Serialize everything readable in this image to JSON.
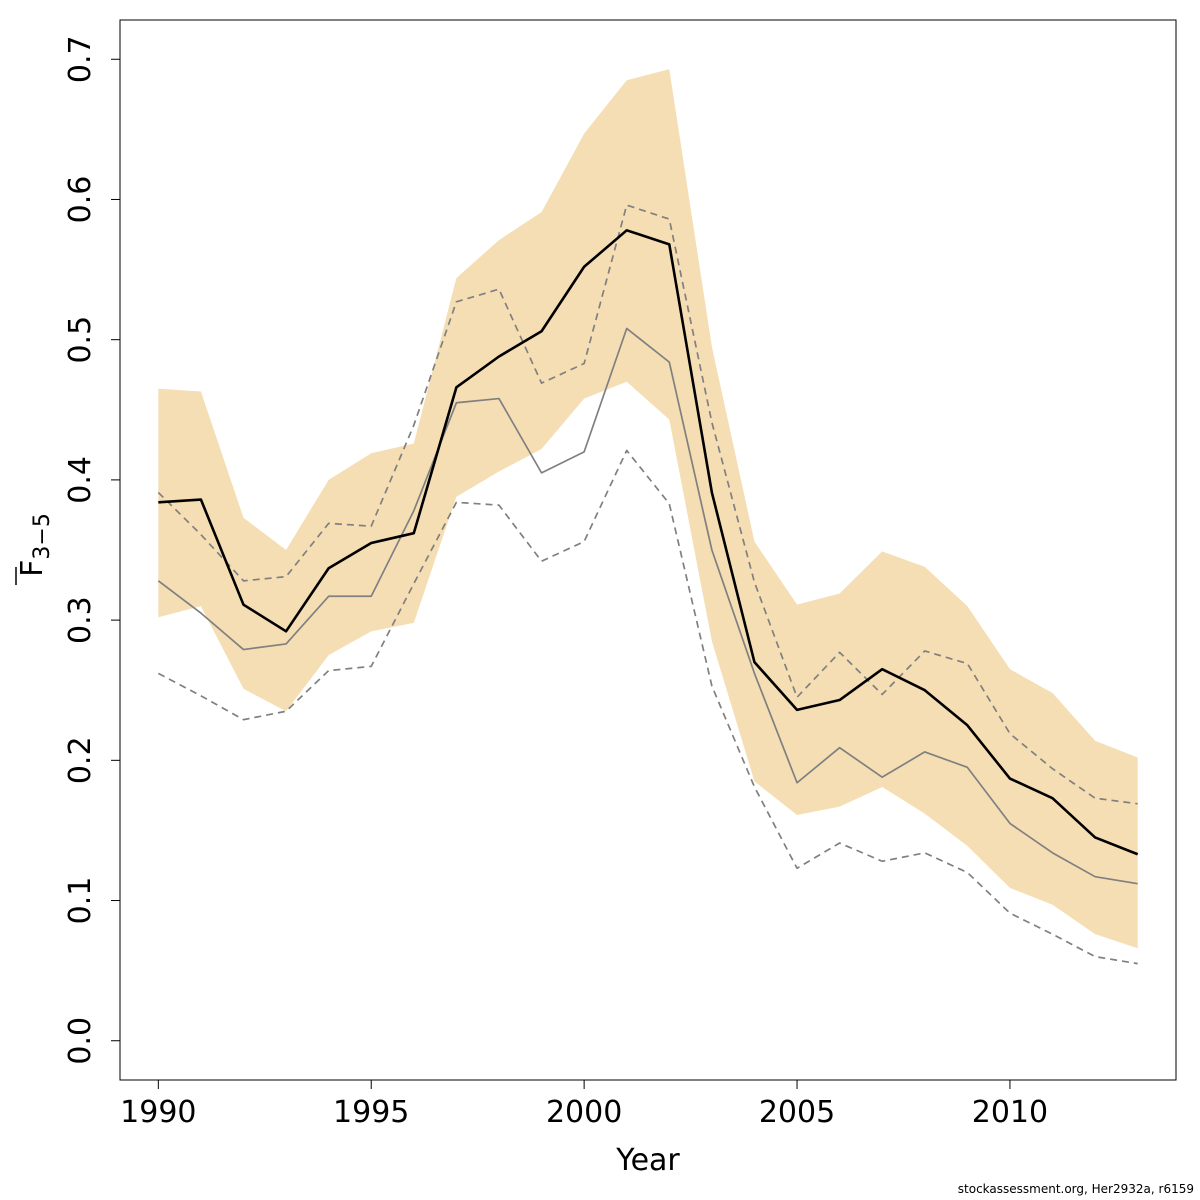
{
  "chart_data": {
    "type": "line",
    "xlabel": "Year",
    "ylabel": {
      "base": "F",
      "subscript": "3−5"
    },
    "xlim": [
      1989.1,
      2013.9
    ],
    "ylim": [
      -0.028,
      0.728
    ],
    "x_ticks": [
      1990,
      1995,
      2000,
      2005,
      2010
    ],
    "y_ticks": [
      "0.0",
      "0.1",
      "0.2",
      "0.3",
      "0.4",
      "0.5",
      "0.6",
      "0.7"
    ],
    "grid": false,
    "legend": "none",
    "colors": {
      "band": "#f5deb3",
      "main": "#000000",
      "secondary": "#808080"
    },
    "x": [
      1990,
      1991,
      1992,
      1993,
      1994,
      1995,
      1996,
      1997,
      1998,
      1999,
      2000,
      2001,
      2002,
      2003,
      2004,
      2005,
      2006,
      2007,
      2008,
      2009,
      2010,
      2011,
      2012,
      2013
    ],
    "band": {
      "upper": [
        0.465,
        0.463,
        0.373,
        0.35,
        0.4,
        0.419,
        0.426,
        0.544,
        0.571,
        0.591,
        0.647,
        0.685,
        0.693,
        0.495,
        0.356,
        0.311,
        0.319,
        0.349,
        0.338,
        0.31,
        0.265,
        0.248,
        0.214,
        0.202
      ],
      "lower": [
        0.302,
        0.31,
        0.251,
        0.235,
        0.275,
        0.292,
        0.298,
        0.388,
        0.406,
        0.422,
        0.458,
        0.47,
        0.443,
        0.285,
        0.185,
        0.161,
        0.167,
        0.181,
        0.162,
        0.139,
        0.109,
        0.097,
        0.076,
        0.066
      ]
    },
    "series": [
      {
        "values": [
          0.384,
          0.386,
          0.311,
          0.292,
          0.337,
          0.355,
          0.362,
          0.466,
          0.488,
          0.506,
          0.552,
          0.578,
          0.568,
          0.391,
          0.27,
          0.236,
          0.243,
          0.265,
          0.25,
          0.225,
          0.187,
          0.173,
          0.145,
          0.133
        ],
        "color": "#000000",
        "width": 2.6,
        "dash": ""
      },
      {
        "values": [
          0.328,
          0.305,
          0.279,
          0.283,
          0.317,
          0.317,
          0.378,
          0.455,
          0.458,
          0.405,
          0.42,
          0.508,
          0.484,
          0.35,
          0.262,
          0.184,
          0.209,
          0.188,
          0.206,
          0.195,
          0.155,
          0.134,
          0.117,
          0.112
        ],
        "color": "#808080",
        "width": 1.7,
        "dash": ""
      },
      {
        "values": [
          0.391,
          0.361,
          0.328,
          0.331,
          0.369,
          0.367,
          0.439,
          0.527,
          0.536,
          0.469,
          0.483,
          0.596,
          0.586,
          0.441,
          0.327,
          0.245,
          0.277,
          0.247,
          0.278,
          0.269,
          0.219,
          0.194,
          0.173,
          0.169
        ],
        "color": "#808080",
        "width": 1.7,
        "dash": "7,5"
      },
      {
        "values": [
          0.262,
          0.246,
          0.229,
          0.235,
          0.264,
          0.267,
          0.326,
          0.384,
          0.382,
          0.342,
          0.356,
          0.421,
          0.383,
          0.253,
          0.181,
          0.123,
          0.141,
          0.128,
          0.134,
          0.12,
          0.091,
          0.076,
          0.06,
          0.055
        ],
        "color": "#808080",
        "width": 1.7,
        "dash": "7,5"
      }
    ]
  },
  "footer": "stockassessment.org, Her2932a, r6159"
}
